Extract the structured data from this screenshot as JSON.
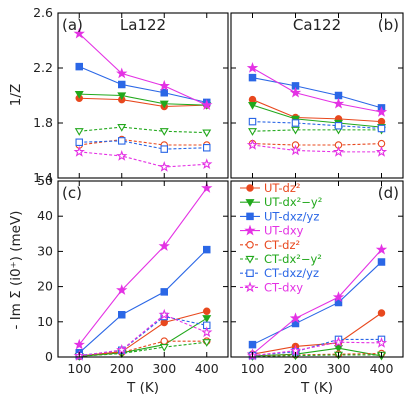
{
  "figure": {
    "xlabel": "T (K)",
    "ylabel_top": "1/Z",
    "ylabel_bottom": "- Im Σ (i0⁺) (meV)"
  },
  "legend": {
    "placement": "lower-right panel, top-left",
    "entries": [
      {
        "label": "UT-dz²",
        "color": "#e8481e",
        "marker": "circle",
        "filled": true
      },
      {
        "label": "UT-dx²−y²",
        "color": "#22a81c",
        "marker": "triangle-down",
        "filled": true
      },
      {
        "label": "UT-dxz/yz",
        "color": "#2b67e6",
        "marker": "square",
        "filled": true
      },
      {
        "label": "UT-dxy",
        "color": "#e432e4",
        "marker": "star",
        "filled": true
      },
      {
        "label": "CT-dz²",
        "color": "#e8481e",
        "marker": "circle",
        "filled": false
      },
      {
        "label": "CT-dx²−y²",
        "color": "#22a81c",
        "marker": "triangle-down",
        "filled": false
      },
      {
        "label": "CT-dxz/yz",
        "color": "#2b67e6",
        "marker": "square",
        "filled": false
      },
      {
        "label": "CT-dxy",
        "color": "#e432e4",
        "marker": "star",
        "filled": false
      }
    ]
  },
  "chart_data": [
    {
      "type": "line",
      "panel": "(a)",
      "title": "La122",
      "x": [
        100,
        200,
        300,
        400
      ],
      "xlim": [
        50,
        450
      ],
      "ylim": [
        1.4,
        2.6
      ],
      "yticks": [
        1.4,
        1.8,
        2.2,
        2.6
      ],
      "series": [
        {
          "name": "UT-dz²",
          "values": [
            1.98,
            1.97,
            1.92,
            1.93
          ]
        },
        {
          "name": "UT-dx²−y²",
          "values": [
            2.01,
            2.0,
            1.94,
            1.93
          ]
        },
        {
          "name": "UT-dxz/yz",
          "values": [
            2.21,
            2.08,
            2.02,
            1.95
          ]
        },
        {
          "name": "UT-dxy",
          "values": [
            2.45,
            2.16,
            2.07,
            1.93
          ]
        },
        {
          "name": "CT-dz²",
          "values": [
            1.64,
            1.68,
            1.64,
            1.64
          ]
        },
        {
          "name": "CT-dx²−y²",
          "values": [
            1.74,
            1.77,
            1.74,
            1.73
          ]
        },
        {
          "name": "CT-dxz/yz",
          "values": [
            1.66,
            1.67,
            1.61,
            1.62
          ]
        },
        {
          "name": "CT-dxy",
          "values": [
            1.59,
            1.56,
            1.48,
            1.5
          ]
        }
      ]
    },
    {
      "type": "line",
      "panel": "(b)",
      "title": "Ca122",
      "x": [
        100,
        200,
        300,
        400
      ],
      "xlim": [
        50,
        450
      ],
      "ylim": [
        1.4,
        2.6
      ],
      "yticks": [
        1.4,
        1.8,
        2.2,
        2.6
      ],
      "series": [
        {
          "name": "UT-dz²",
          "values": [
            1.97,
            1.84,
            1.83,
            1.81
          ]
        },
        {
          "name": "UT-dx²−y²",
          "values": [
            1.93,
            1.83,
            1.8,
            1.77
          ]
        },
        {
          "name": "UT-dxz/yz",
          "values": [
            2.13,
            2.07,
            2.0,
            1.91
          ]
        },
        {
          "name": "UT-dxy",
          "values": [
            2.2,
            2.02,
            1.94,
            1.88
          ]
        },
        {
          "name": "CT-dz²",
          "values": [
            1.65,
            1.64,
            1.64,
            1.65
          ]
        },
        {
          "name": "CT-dx²−y²",
          "values": [
            1.74,
            1.75,
            1.75,
            1.75
          ]
        },
        {
          "name": "CT-dxz/yz",
          "values": [
            1.81,
            1.8,
            1.78,
            1.76
          ]
        },
        {
          "name": "CT-dxy",
          "values": [
            1.64,
            1.6,
            1.59,
            1.59
          ]
        }
      ]
    },
    {
      "type": "line",
      "panel": "(c)",
      "x": [
        100,
        200,
        300,
        400
      ],
      "xlim": [
        50,
        450
      ],
      "ylim": [
        0,
        50
      ],
      "yticks": [
        0,
        10,
        20,
        30,
        40,
        50
      ],
      "xticks": [
        100,
        200,
        300,
        400
      ],
      "series": [
        {
          "name": "UT-dz²",
          "values": [
            0.3,
            1.5,
            9.8,
            13.0
          ]
        },
        {
          "name": "UT-dx²−y²",
          "values": [
            0.2,
            1.2,
            3.5,
            11.0
          ]
        },
        {
          "name": "UT-dxz/yz",
          "values": [
            1.2,
            12.0,
            18.5,
            30.5
          ]
        },
        {
          "name": "UT-dxy",
          "values": [
            3.5,
            19.0,
            31.5,
            48.0
          ]
        },
        {
          "name": "CT-dz²",
          "values": [
            0.2,
            1.3,
            4.5,
            4.5
          ]
        },
        {
          "name": "CT-dx²−y²",
          "values": [
            0.2,
            1.0,
            2.8,
            4.2
          ]
        },
        {
          "name": "CT-dxz/yz",
          "values": [
            0.4,
            1.9,
            11.5,
            9.0
          ]
        },
        {
          "name": "CT-dxy",
          "values": [
            0.3,
            2.0,
            12.0,
            7.0
          ]
        }
      ]
    },
    {
      "type": "line",
      "panel": "(d)",
      "x": [
        100,
        200,
        300,
        400
      ],
      "xlim": [
        50,
        450
      ],
      "ylim": [
        0,
        50
      ],
      "yticks": [
        0,
        10,
        20,
        30,
        40,
        50
      ],
      "xticks": [
        100,
        200,
        300,
        400
      ],
      "series": [
        {
          "name": "UT-dz²",
          "values": [
            0.8,
            3.0,
            4.0,
            12.5
          ]
        },
        {
          "name": "UT-dx²−y²",
          "values": [
            0.3,
            0.8,
            2.5,
            0.3
          ]
        },
        {
          "name": "UT-dxz/yz",
          "values": [
            3.5,
            9.5,
            15.5,
            27.0
          ]
        },
        {
          "name": "UT-dxy",
          "values": [
            0.8,
            11.0,
            17.0,
            30.5
          ]
        },
        {
          "name": "CT-dz²",
          "values": [
            0.3,
            0.6,
            0.8,
            1.0
          ]
        },
        {
          "name": "CT-dx²−y²",
          "values": [
            0.2,
            0.4,
            0.6,
            0.6
          ]
        },
        {
          "name": "CT-dxz/yz",
          "values": [
            0.4,
            1.5,
            5.0,
            5.0
          ]
        },
        {
          "name": "CT-dxy",
          "values": [
            0.4,
            1.8,
            4.2,
            4.0
          ]
        }
      ]
    }
  ]
}
